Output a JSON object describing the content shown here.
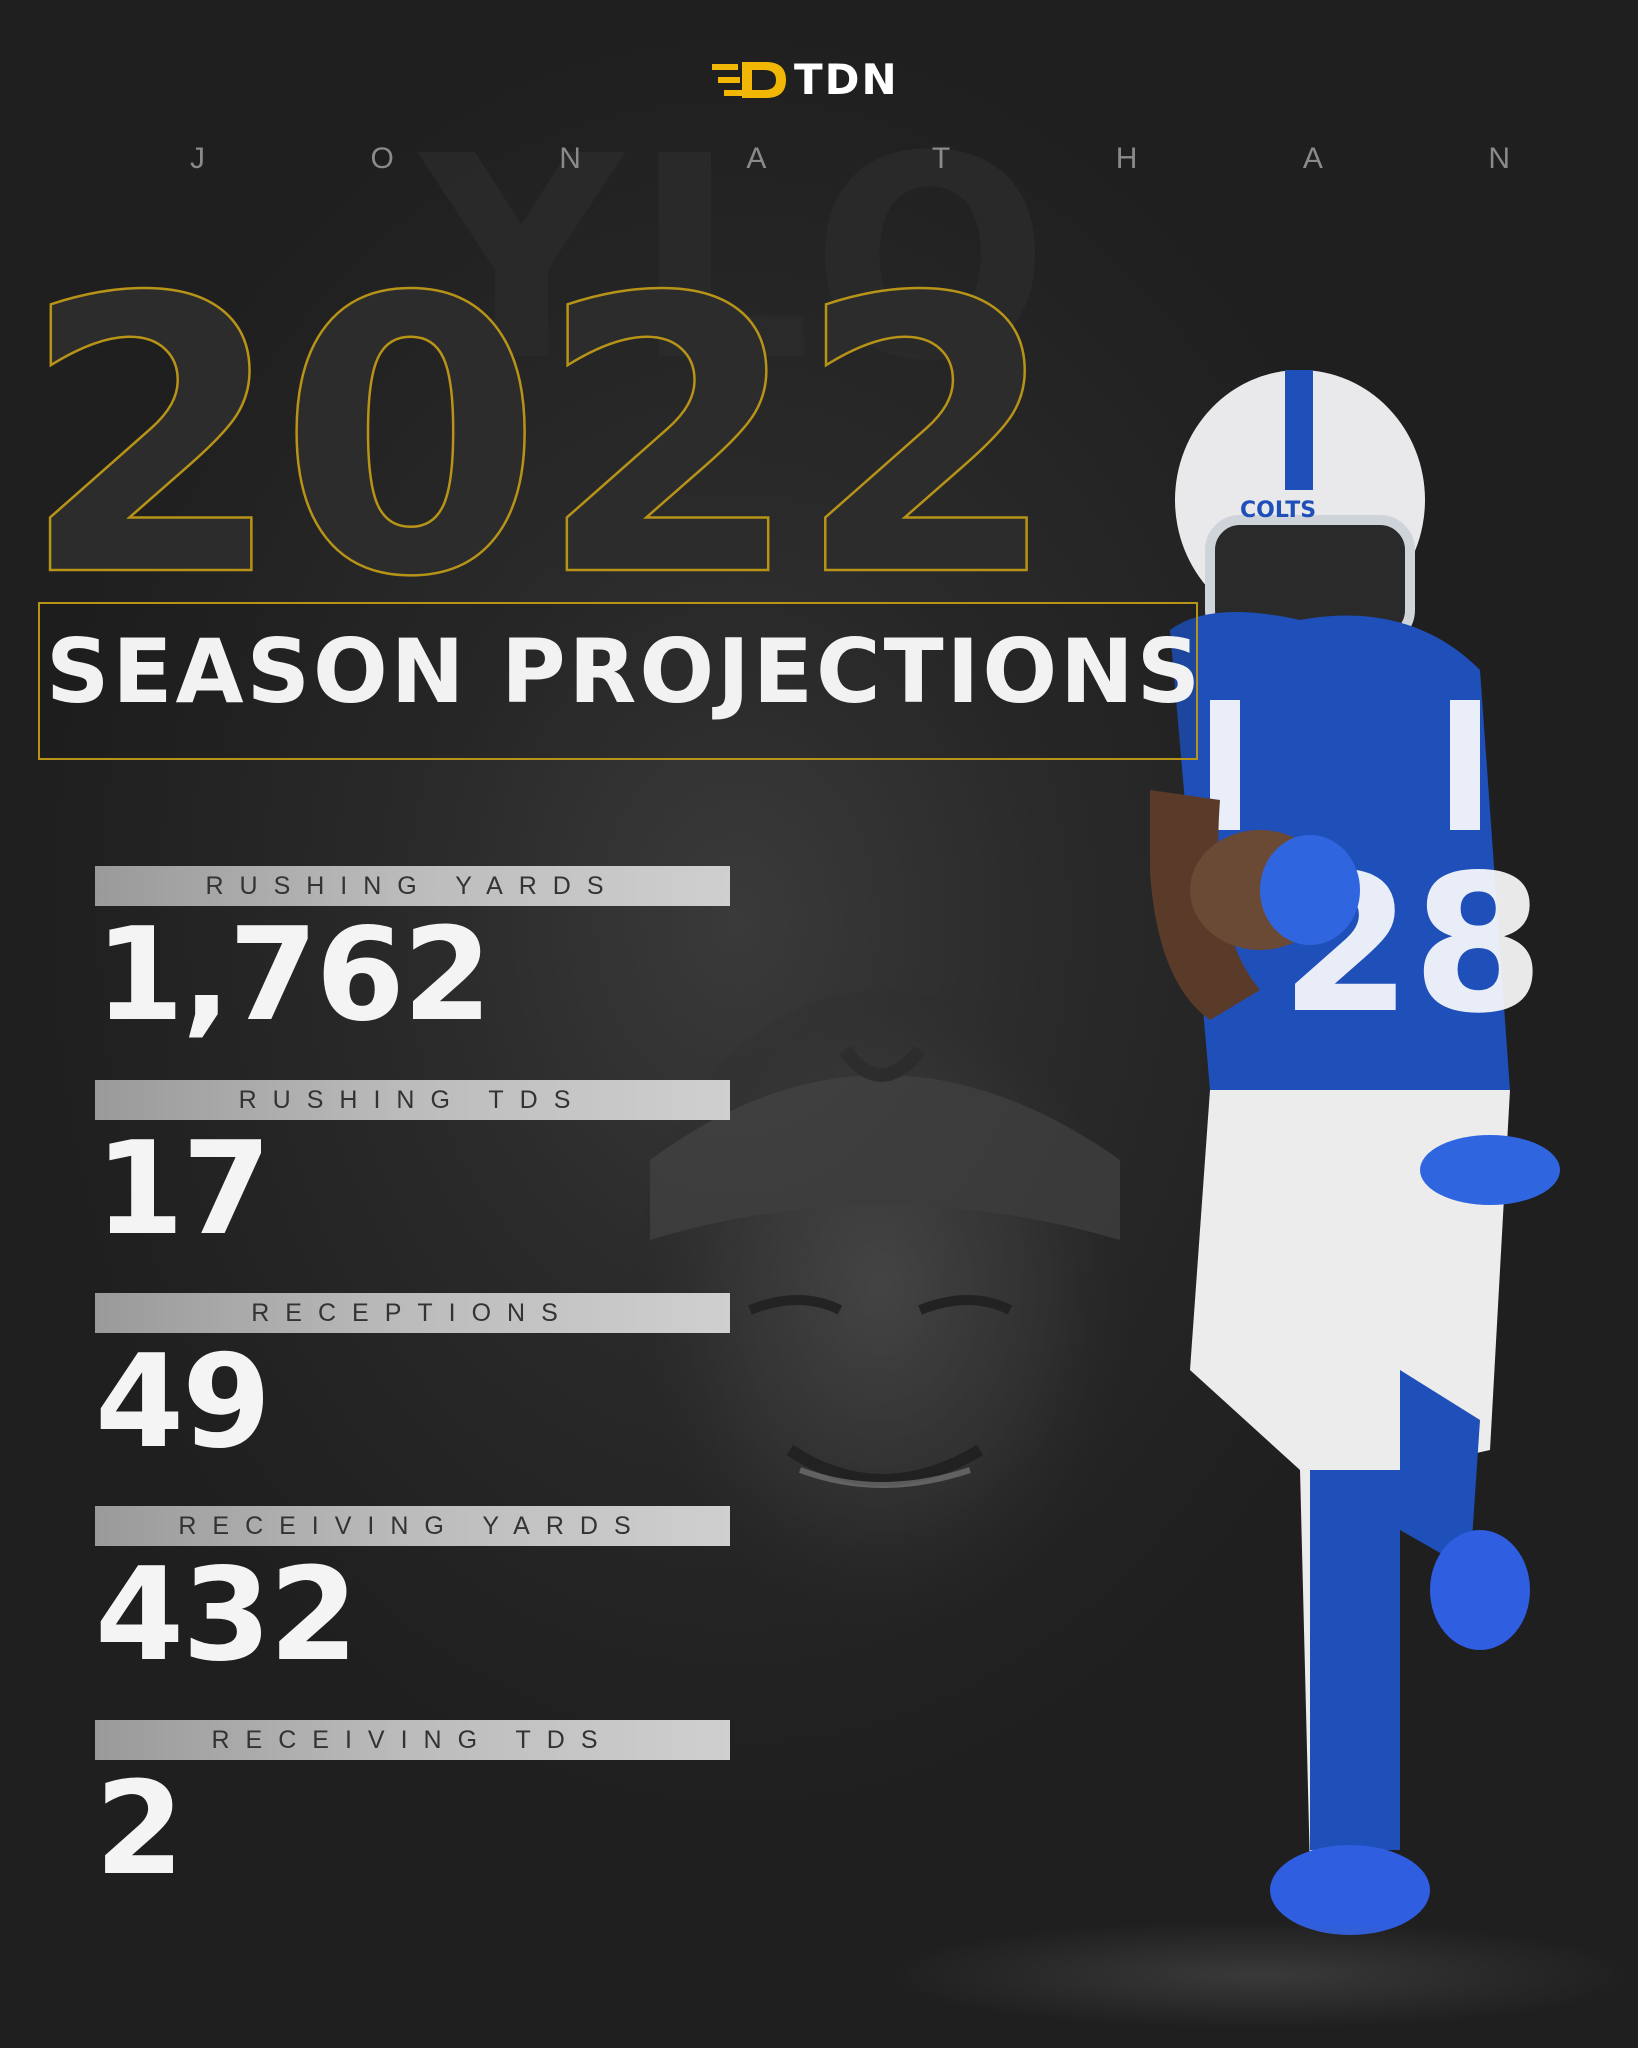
{
  "brand": {
    "name": "TDN",
    "accent_color": "#f2b705"
  },
  "player": {
    "first_name_letters": [
      "J",
      "O",
      "N",
      "A",
      "T",
      "H",
      "A",
      "N"
    ],
    "jersey_number": "28",
    "helmet_text": "COLTS"
  },
  "headline": {
    "year": "2022",
    "title": "SEASON PROJECTIONS"
  },
  "stats": [
    {
      "label": "RUSHING YARDS",
      "value": "1,762"
    },
    {
      "label": "RUSHING TDS",
      "value": "17"
    },
    {
      "label": "RECEPTIONS",
      "value": "49"
    },
    {
      "label": "RECEIVING YARDS",
      "value": "432"
    },
    {
      "label": "RECEIVING TDS",
      "value": "2"
    }
  ],
  "colors": {
    "background": "#242424",
    "outline_gold": "#b79317",
    "jersey_blue": "#1f4fb8",
    "stat_text": "#f4f4f4"
  }
}
